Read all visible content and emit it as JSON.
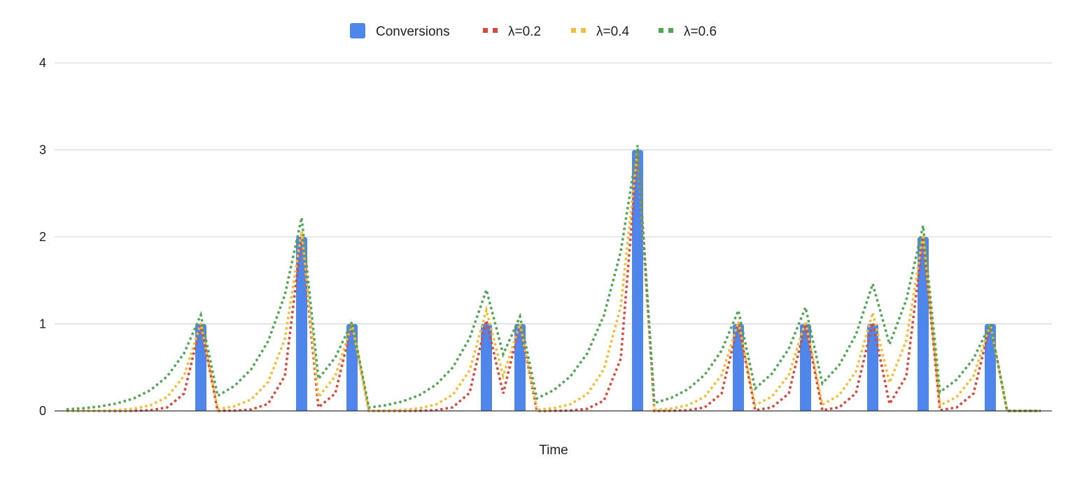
{
  "chart_data": {
    "type": "bar+line",
    "title": "",
    "xlabel": "Time",
    "ylabel": "",
    "ylim": [
      0,
      4
    ],
    "yticks": [
      "0",
      "1",
      "2",
      "3",
      "4"
    ],
    "grid": true,
    "legend_position": "top",
    "x_count": 59,
    "bars": {
      "name": "Conversions",
      "color": "#4F86EC",
      "values": [
        0,
        0,
        0,
        0,
        0,
        0,
        0,
        0,
        1,
        0,
        0,
        0,
        0,
        0,
        2,
        0,
        0,
        1,
        0,
        0,
        0,
        0,
        0,
        0,
        0,
        1,
        0,
        1,
        0,
        0,
        0,
        0,
        0,
        0,
        3,
        0,
        0,
        0,
        0,
        0,
        1,
        0,
        0,
        0,
        1,
        0,
        0,
        0,
        1,
        0,
        0,
        2,
        0,
        0,
        0,
        1,
        0,
        0,
        0
      ]
    },
    "series": [
      {
        "name": "λ=0.2",
        "lambda": 0.2,
        "color": "#D24B3E",
        "style": "dotted"
      },
      {
        "name": "λ=0.4",
        "lambda": 0.4,
        "color": "#F0BE3E",
        "style": "dotted"
      },
      {
        "name": "λ=0.6",
        "lambda": 0.6,
        "color": "#55A35A",
        "style": "dotted"
      }
    ]
  }
}
